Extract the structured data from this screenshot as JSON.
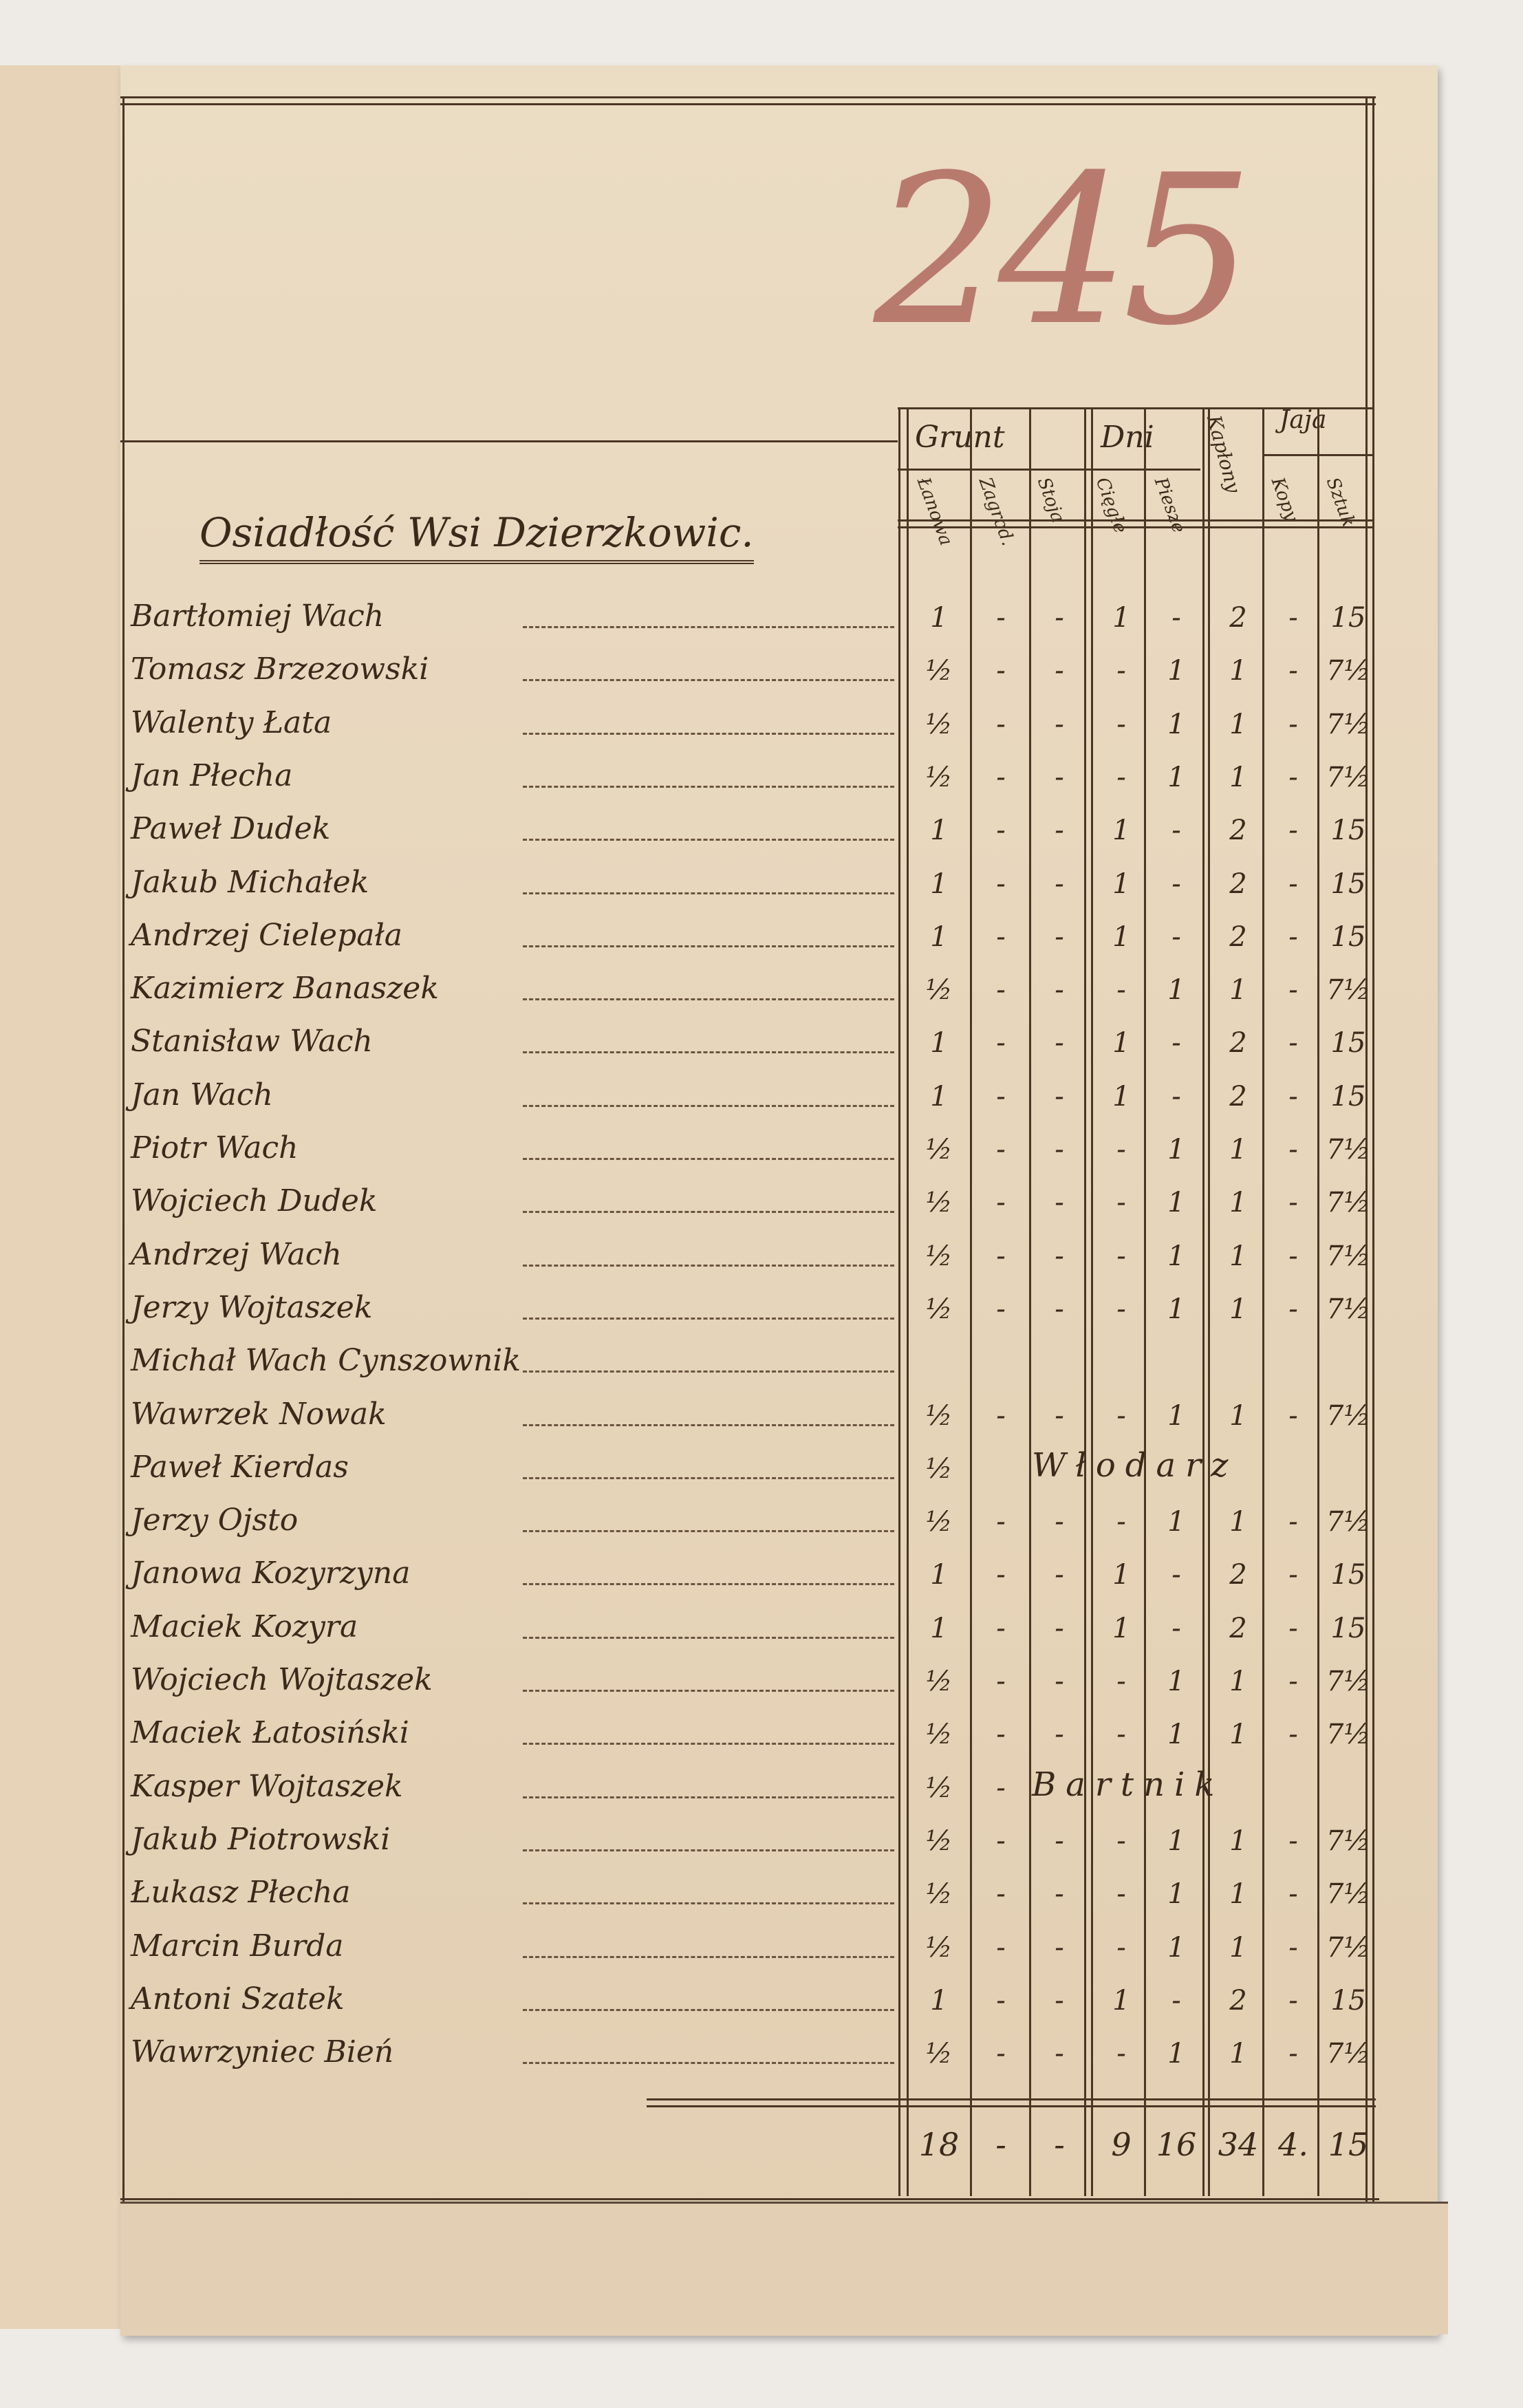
{
  "page_number": "245",
  "title": "Osiadłość Wsi Dzierzkowic.",
  "header": {
    "groups": [
      "Grunt",
      "Dni",
      "Kapłony",
      "Jaja"
    ],
    "columns": [
      "Łanowa",
      "Zagrod.",
      "Stoja",
      "Cięgłe",
      "Piesze",
      "Kopy",
      "Sztuk"
    ]
  },
  "rows": [
    {
      "name": "Bartłomiej Wach",
      "v": [
        "1",
        "-",
        "-",
        "1",
        "-",
        "2",
        "-",
        "15"
      ]
    },
    {
      "name": "Tomasz Brzezowski",
      "v": [
        "½",
        "-",
        "-",
        "-",
        "1",
        "1",
        "-",
        "7½"
      ]
    },
    {
      "name": "Walenty Łata",
      "v": [
        "½",
        "-",
        "-",
        "-",
        "1",
        "1",
        "-",
        "7½"
      ]
    },
    {
      "name": "Jan Płecha",
      "v": [
        "½",
        "-",
        "-",
        "-",
        "1",
        "1",
        "-",
        "7½"
      ]
    },
    {
      "name": "Paweł Dudek",
      "v": [
        "1",
        "-",
        "-",
        "1",
        "-",
        "2",
        "-",
        "15"
      ]
    },
    {
      "name": "Jakub Michałek",
      "v": [
        "1",
        "-",
        "-",
        "1",
        "-",
        "2",
        "-",
        "15"
      ]
    },
    {
      "name": "Andrzej Cielepała",
      "v": [
        "1",
        "-",
        "-",
        "1",
        "-",
        "2",
        "-",
        "15"
      ]
    },
    {
      "name": "Kazimierz Banaszek",
      "v": [
        "½",
        "-",
        "-",
        "-",
        "1",
        "1",
        "-",
        "7½"
      ]
    },
    {
      "name": "Stanisław Wach",
      "v": [
        "1",
        "-",
        "-",
        "1",
        "-",
        "2",
        "-",
        "15"
      ]
    },
    {
      "name": "Jan Wach",
      "v": [
        "1",
        "-",
        "-",
        "1",
        "-",
        "2",
        "-",
        "15"
      ]
    },
    {
      "name": "Piotr Wach",
      "v": [
        "½",
        "-",
        "-",
        "-",
        "1",
        "1",
        "-",
        "7½"
      ]
    },
    {
      "name": "Wojciech Dudek",
      "v": [
        "½",
        "-",
        "-",
        "-",
        "1",
        "1",
        "-",
        "7½"
      ]
    },
    {
      "name": "Andrzej Wach",
      "v": [
        "½",
        "-",
        "-",
        "-",
        "1",
        "1",
        "-",
        "7½"
      ]
    },
    {
      "name": "Jerzy Wojtaszek",
      "v": [
        "½",
        "-",
        "-",
        "-",
        "1",
        "1",
        "-",
        "7½"
      ]
    },
    {
      "name": "Michał Wach Cynszownik",
      "v": [
        "",
        "",
        "",
        "",
        "",
        "",
        "",
        ""
      ]
    },
    {
      "name": "Wawrzek Nowak",
      "v": [
        "½",
        "-",
        "-",
        "-",
        "1",
        "1",
        "-",
        "7½"
      ]
    },
    {
      "name": "Paweł Kierdas",
      "v": [
        "½",
        "",
        "",
        "",
        "",
        "",
        "",
        ""
      ],
      "note": "Włodarz"
    },
    {
      "name": "Jerzy Ojsto",
      "v": [
        "½",
        "-",
        "-",
        "-",
        "1",
        "1",
        "-",
        "7½"
      ]
    },
    {
      "name": "Janowa Kozyrzyna",
      "v": [
        "1",
        "-",
        "-",
        "1",
        "-",
        "2",
        "-",
        "15"
      ]
    },
    {
      "name": "Maciek Kozyra",
      "v": [
        "1",
        "-",
        "-",
        "1",
        "-",
        "2",
        "-",
        "15"
      ]
    },
    {
      "name": "Wojciech Wojtaszek",
      "v": [
        "½",
        "-",
        "-",
        "-",
        "1",
        "1",
        "-",
        "7½"
      ]
    },
    {
      "name": "Maciek Łatosiński",
      "v": [
        "½",
        "-",
        "-",
        "-",
        "1",
        "1",
        "-",
        "7½"
      ]
    },
    {
      "name": "Kasper Wojtaszek",
      "v": [
        "½",
        "-",
        "",
        "",
        "",
        "",
        "",
        ""
      ],
      "note": "Bartnik"
    },
    {
      "name": "Jakub Piotrowski",
      "v": [
        "½",
        "-",
        "-",
        "-",
        "1",
        "1",
        "-",
        "7½"
      ]
    },
    {
      "name": "Łukasz Płecha",
      "v": [
        "½",
        "-",
        "-",
        "-",
        "1",
        "1",
        "-",
        "7½"
      ]
    },
    {
      "name": "Marcin Burda",
      "v": [
        "½",
        "-",
        "-",
        "-",
        "1",
        "1",
        "-",
        "7½"
      ]
    },
    {
      "name": "Antoni Szatek",
      "v": [
        "1",
        "-",
        "-",
        "1",
        "-",
        "2",
        "-",
        "15"
      ]
    },
    {
      "name": "Wawrzyniec Bień",
      "v": [
        "½",
        "-",
        "-",
        "-",
        "1",
        "1",
        "-",
        "7½"
      ]
    }
  ],
  "totals": [
    "18",
    "-",
    "-",
    "9",
    "16",
    "34",
    "4.",
    "15"
  ],
  "colors": {
    "ink": "#3b2a1a",
    "page_number": "#b97a6e",
    "paper": "#e6d4b9"
  }
}
